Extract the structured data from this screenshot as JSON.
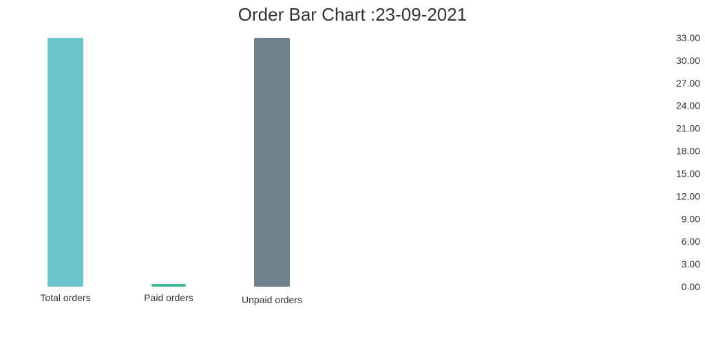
{
  "chart_data": {
    "type": "bar",
    "title": "Order Bar Chart :23-09-2021",
    "xlabel": "",
    "ylabel": "",
    "categories": [
      "Total orders",
      "Paid orders",
      "Unpaid orders"
    ],
    "values": [
      33,
      0,
      33
    ],
    "colors": [
      "#6cc5cc",
      "#3dbb9a",
      "#6e808a"
    ],
    "ylim": [
      0,
      33
    ],
    "y_ticks": [
      "0.00",
      "3.00",
      "6.00",
      "9.00",
      "12.00",
      "15.00",
      "18.00",
      "21.00",
      "24.00",
      "27.00",
      "30.00",
      "33.00"
    ],
    "y_axis_position": "right",
    "grid": false,
    "legend": "none"
  }
}
